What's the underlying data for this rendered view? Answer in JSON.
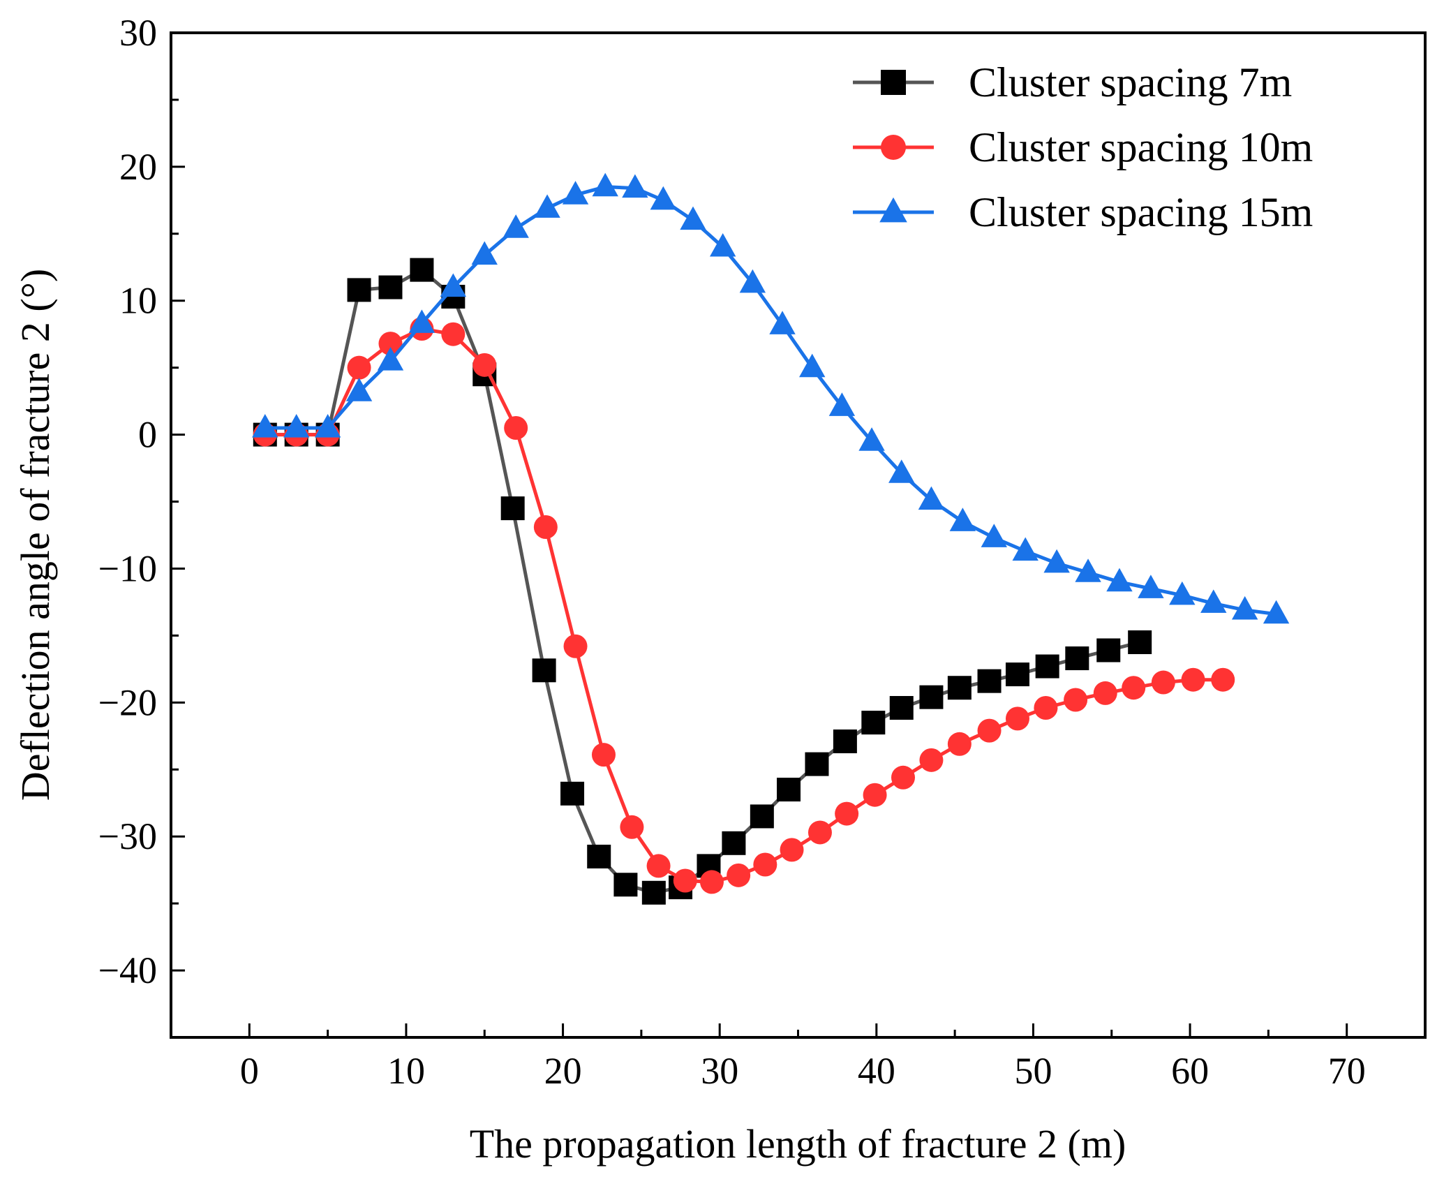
{
  "chart_data": {
    "type": "line",
    "title": "",
    "xlabel": "The propagation length of fracture 2 (m)",
    "ylabel": "Deflection angle of fracture 2 (°)",
    "xlim": [
      -5,
      75
    ],
    "ylim": [
      -45,
      30
    ],
    "xticks": [
      0,
      10,
      20,
      30,
      40,
      50,
      60,
      70
    ],
    "yticks": [
      30,
      20,
      10,
      0,
      -10,
      -20,
      -30,
      -40
    ],
    "xtick_labels": [
      "0",
      "10",
      "20",
      "30",
      "40",
      "50",
      "60",
      "70"
    ],
    "ytick_labels": [
      "30",
      "20",
      "10",
      "0",
      "−10",
      "−20",
      "−30",
      "−40"
    ],
    "legend_position": "top-right",
    "series": [
      {
        "name": "Cluster spacing 7m",
        "color": "#000000",
        "line_color": "#555555",
        "marker": "square",
        "x": [
          1,
          3,
          5,
          7,
          9,
          11,
          13,
          15,
          16.8,
          18.8,
          20.6,
          22.3,
          24,
          25.8,
          27.5,
          29.3,
          30.9,
          32.7,
          34.4,
          36.2,
          38,
          39.8,
          41.6,
          43.5,
          45.3,
          47.2,
          49,
          50.9,
          52.8,
          54.8,
          56.8
        ],
        "y": [
          0,
          0,
          0,
          10.8,
          11,
          12.3,
          10.3,
          4.5,
          -5.5,
          -17.6,
          -26.8,
          -31.5,
          -33.6,
          -34.2,
          -33.8,
          -32.2,
          -30.5,
          -28.5,
          -26.5,
          -24.6,
          -22.9,
          -21.5,
          -20.4,
          -19.6,
          -18.9,
          -18.4,
          -17.9,
          -17.3,
          -16.7,
          -16.1,
          -15.5
        ]
      },
      {
        "name": "Cluster spacing 10m",
        "color": "#ff3333",
        "line_color": "#ff3333",
        "marker": "circle",
        "x": [
          1,
          3,
          5,
          7,
          9,
          11,
          13,
          15,
          17,
          18.9,
          20.8,
          22.6,
          24.4,
          26.1,
          27.8,
          29.5,
          31.2,
          32.9,
          34.6,
          36.4,
          38.1,
          39.9,
          41.7,
          43.5,
          45.3,
          47.2,
          49,
          50.8,
          52.7,
          54.6,
          56.4,
          58.3,
          60.2,
          62.1
        ],
        "y": [
          0,
          0,
          0,
          5,
          6.8,
          7.9,
          7.5,
          5.2,
          0.5,
          -6.9,
          -15.8,
          -23.9,
          -29.3,
          -32.2,
          -33.3,
          -33.4,
          -32.9,
          -32.1,
          -31,
          -29.7,
          -28.3,
          -26.9,
          -25.6,
          -24.3,
          -23.1,
          -22.1,
          -21.2,
          -20.4,
          -19.8,
          -19.3,
          -18.9,
          -18.5,
          -18.3,
          -18.3
        ]
      },
      {
        "name": "Cluster spacing 15m",
        "color": "#1a73e8",
        "line_color": "#1a73e8",
        "marker": "triangle",
        "x": [
          1,
          3,
          5,
          7,
          9,
          11,
          13,
          15,
          17,
          19,
          20.8,
          22.7,
          24.6,
          26.4,
          28.3,
          30.2,
          32.1,
          34,
          35.9,
          37.8,
          39.7,
          41.6,
          43.5,
          45.5,
          47.5,
          49.5,
          51.5,
          53.5,
          55.5,
          57.5,
          59.5,
          61.5,
          63.5,
          65.5
        ],
        "y": [
          0.5,
          0.5,
          0.5,
          3.2,
          5.5,
          8.3,
          11,
          13.4,
          15.4,
          16.9,
          17.9,
          18.5,
          18.4,
          17.5,
          16,
          14,
          11.3,
          8.2,
          5,
          2.1,
          -0.5,
          -2.9,
          -4.9,
          -6.5,
          -7.7,
          -8.7,
          -9.6,
          -10.3,
          -11,
          -11.5,
          -12,
          -12.6,
          -13.1,
          -13.4
        ]
      }
    ]
  }
}
